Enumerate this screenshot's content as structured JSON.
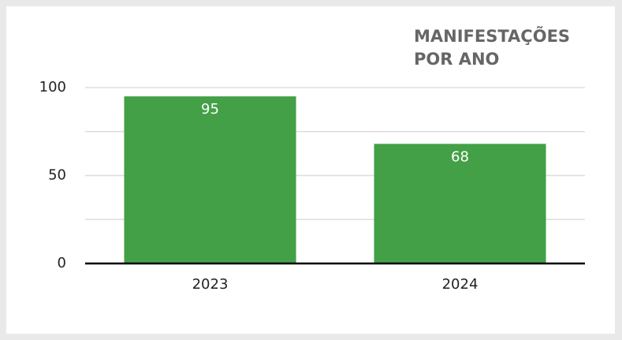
{
  "chart_data": {
    "type": "bar",
    "title": "MANIFESTAÇÕES POR ANO",
    "categories": [
      "2023",
      "2024"
    ],
    "values": [
      95,
      68
    ],
    "color": "#43a047",
    "ylim": [
      0,
      100
    ],
    "yticks": [
      0,
      50,
      100
    ],
    "minor_yticks": [
      25,
      75
    ],
    "grid": true,
    "value_labels_inside": true
  }
}
